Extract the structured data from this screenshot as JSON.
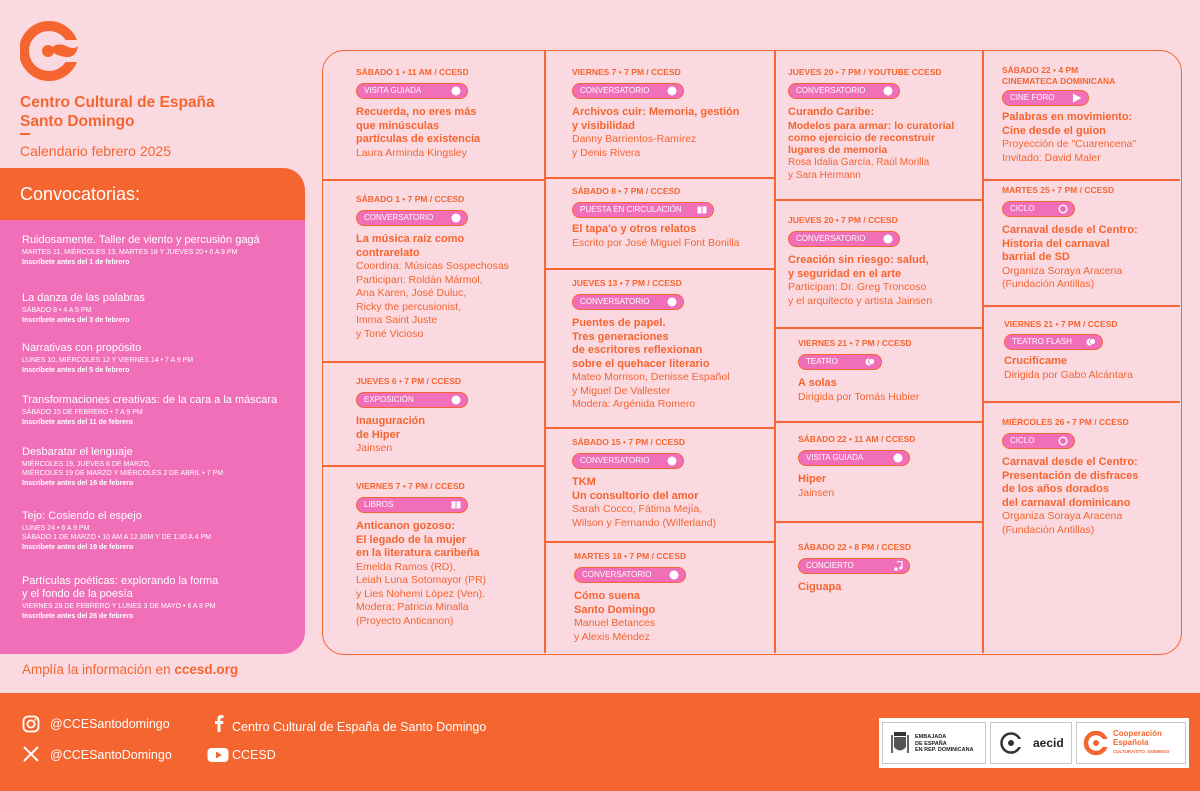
{
  "brand": {
    "name_line1": "Centro Cultural de España",
    "name_line2": "Santo Domingo",
    "calendar": "Calendario febrero 2025",
    "color": "#f4652f",
    "pink": "#f06fb8",
    "background": "#fbd9e1"
  },
  "calls": {
    "heading": "Convocatorias:",
    "items": [
      {
        "title": "Ruidosamente. Taller de viento y percusión gagá",
        "date": "MARTES 11, MIÉRCOLES 13, MARTES 18 Y JUEVES 20 • 6 A 9 PM",
        "note": "Inscríbete antes del 1 de febrero"
      },
      {
        "title": "La danza de las palabras",
        "date": "SÁBADO 8 • 4 A 5 PM",
        "note": "Inscríbete antes del 3 de febrero"
      },
      {
        "title": "Narrativas con propósito",
        "date": "LUNES 10, MIÉRCOLES 12 Y VIERNES 14 • 7 A 9 PM",
        "note": "Inscríbete antes del 5 de febrero"
      },
      {
        "title": "Transformaciones creativas: de la cara a la máscara",
        "date": "SÁBADO 15 DE FEBRERO • 7 A 9 PM",
        "note": "Inscríbete antes del 11 de febrero"
      },
      {
        "title": "Desbaratar el lenguaje",
        "date": "MIÉRCOLES 19, JUEVES 6 DE MARZO,",
        "date2": "MIÉRCOLES 19 DE MARZO Y MIÉRCOLES 2 DE ABRIL • 7 PM",
        "note": "Inscríbete antes del 16 de febrero"
      },
      {
        "title": "Tejo: Cosiendo el espejo",
        "date": "LUNES 24 • 6 A 9 PM",
        "date2": "SÁBADO 1 DE MARZO • 10 AM A 12.30M Y DE 1:30 A 4 PM",
        "note": "Inscríbete antes del 19 de febrero"
      },
      {
        "title": "Partículas poéticas: explorando la forma",
        "title2": "y el fondo de la poesía",
        "date": "VIERNES 28 DE FEBRERO Y LUNES 3 DE MAYO • 6 A 8 PM",
        "note": "Inscríbete antes del 26 de febrero"
      }
    ]
  },
  "more_info": {
    "prefix": "Amplía la información en ",
    "link": "ccesd.org"
  },
  "events": {
    "c1": [
      {
        "date": "SÁBADO 1 • 11 AM / CCESD",
        "tag": "VISITA GUIADA",
        "icon": "toggle-icon",
        "title": [
          "Recuerda, no eres más",
          "que minúsculas",
          "partículas de existencia"
        ],
        "body": [
          "Laura Arminda Kingsley"
        ]
      },
      {
        "date": "SÁBADO 1 • 7 PM / CCESD",
        "tag": "CONVERSATORIO",
        "icon": "toggle-icon",
        "title": [
          "La música raíz como",
          "contrarelato"
        ],
        "body": [
          "Coordina: Músicas Sospechosas",
          "Participan: Roldán Mármol,",
          "Ana Karen, José Duluc,",
          "Ricky the percusionist,",
          "Imma Saint Juste",
          "y Toné Vicioso"
        ]
      },
      {
        "date": "JUEVES 6 • 7 PM / CCESD",
        "tag": "EXPOSICIÓN",
        "icon": "toggle-icon",
        "title": [
          "Inauguración",
          "de Hiper"
        ],
        "body": [
          "Jainsen"
        ]
      },
      {
        "date": "VIERNES 7 • 7 PM / CCESD",
        "tag": "LIBROS",
        "icon": "book-icon",
        "title": [
          "Anticanon gozoso:",
          "El legado de la mujer",
          "en la literatura caribeña"
        ],
        "body": [
          "Emelda Ramos (RD),",
          "Leiah Luna Sotomayor (PR)",
          "y Lies Nohemi López (Ven).",
          "Modera: Patricia Minalla",
          "(Proyecto Anticanon)"
        ]
      }
    ],
    "c2": [
      {
        "date": "VIERNES 7 • 7 PM / CCESD",
        "tag": "CONVERSATORIO",
        "icon": "toggle-icon",
        "title": [
          "Archivos cuir:  Memoria, gestión",
          "y visibilidad"
        ],
        "body": [
          "Danny Barrientos-Ramírez",
          "y Denis Rivera"
        ]
      },
      {
        "date": "SÁBADO 8 • 7 PM / CCESD",
        "tag": "PUESTA EN CIRCULACIÓN",
        "icon": "book-icon",
        "title": [
          "El tapa'o y otros relatos"
        ],
        "body": [
          "Escrito por José Miguel Font Bonilla"
        ]
      },
      {
        "date": "JUEVES 13 • 7 PM / CCESD",
        "tag": "CONVERSATORIO",
        "icon": "toggle-icon",
        "title": [
          "Puentes de papel.",
          "Tres generaciones",
          "de escritores reflexionan",
          "sobre el quehacer literario"
        ],
        "body": [
          "Mateo Morrison, Denisse Español",
          "y Miguel De Vallester",
          "Modera: Argénida Romero"
        ]
      },
      {
        "date": "SÁBADO 15 • 7 PM / CCESD",
        "tag": "CONVERSATORIO",
        "icon": "toggle-icon",
        "title": [
          "TKM",
          "Un consultorio del amor"
        ],
        "body": [
          "Sarah Cocco, Fátima Mejía,",
          "Wilson y Fernando (Wilferland)"
        ]
      },
      {
        "date": "MARTES 18 • 7 PM / CCESD",
        "tag": "CONVERSATORIO",
        "icon": "toggle-icon",
        "title": [
          "Cómo suena",
          "Santo Domingo"
        ],
        "body": [
          "Manuel Betances",
          "y Alexis Méndez"
        ]
      }
    ],
    "c3": [
      {
        "date": "JUEVES 20 • 7 PM / YOUTUBE CCESD",
        "tag": "CONVERSATORIO",
        "icon": "toggle-icon",
        "title": [
          "Curando Caribe:",
          "Modelos para armar: lo curatorial",
          "como ejercicio de reconstruir",
          "lugares de memoria"
        ],
        "body": [
          "Rosa Idalia García, Raúl Morilla",
          "y Sara Hermann"
        ]
      },
      {
        "date": "JUEVES 20 • 7 PM / CCESD",
        "tag": "CONVERSATORIO",
        "icon": "toggle-icon",
        "title": [
          "Creación sin riesgo: salud,",
          "y seguridad en el arte"
        ],
        "body": [
          "Participan: Dr. Greg Troncoso",
          "y el arquitecto y artista Jainsen"
        ]
      },
      {
        "date": "VIERNES 21 • 7 PM / CCESD",
        "tag": "TEATRO",
        "icon": "masks-icon",
        "title": [
          "A solas"
        ],
        "body": [
          "Dirigida por Tomás Hubier"
        ]
      },
      {
        "date": "SÁBADO 22 • 11 AM / CCESD",
        "tag": "VISITA GUIADA",
        "icon": "toggle-icon",
        "title": [
          "Hiper"
        ],
        "body": [
          "Jainsen"
        ]
      },
      {
        "date": "SÁBADO 22 • 8 PM / CCESD",
        "tag": "CONCIERTO",
        "icon": "music-icon",
        "title": [
          "Ciguapa"
        ],
        "body": []
      }
    ],
    "c4": [
      {
        "date": "SÁBADO 22 • 4 PM",
        "date2": "CINEMATECA DOMINICANA",
        "tag": "CINE FORO",
        "icon": "play-icon",
        "title": [
          "Palabras en movimiento:",
          "Cine desde el guion"
        ],
        "body": [
          "Proyección de \"Cuarencena\"",
          "Invitado: David Maler"
        ]
      },
      {
        "date": "MARTES 25 • 7 PM / CCESD",
        "tag": "CICLO",
        "icon": "circle-icon",
        "title": [
          "Carnaval desde el Centro:",
          "Historia del carnaval",
          "barrial de SD"
        ],
        "body": [
          "Organiza Soraya Aracena",
          "(Fundación Antillas)"
        ]
      },
      {
        "date": "VIERNES 21 • 7 PM / CCESD",
        "tag": "TEATRO FLASH",
        "icon": "masks-icon",
        "title": [
          "Crucifícame"
        ],
        "body": [
          "Dirigida por Gabo Alcántara"
        ]
      },
      {
        "date": "MIÉRCOLES 26 • 7 PM / CCESD",
        "tag": "CICLO",
        "icon": "circle-icon",
        "title": [
          "Carnaval desde el Centro:",
          "Presentación de disfraces",
          "de los años dorados",
          "del carnaval dominicano"
        ],
        "body": [
          "Organiza Soraya Aracena",
          "(Fundación Antillas)"
        ]
      }
    ]
  },
  "footer": {
    "instagram": "@CCESantodomingo",
    "facebook": "Centro Cultural de España de Santo Domingo",
    "x": "@CCESantoDomingo",
    "youtube": "CCESD",
    "embajada": [
      "EMBAJADA",
      "DE ESPAÑA",
      "EN REP. DOMINICANA"
    ],
    "aecid": "aecid",
    "cooperacion": [
      "Cooperación",
      "Española"
    ],
    "cooperacion_sub": "CULTURA/STO. DOMINGO"
  }
}
